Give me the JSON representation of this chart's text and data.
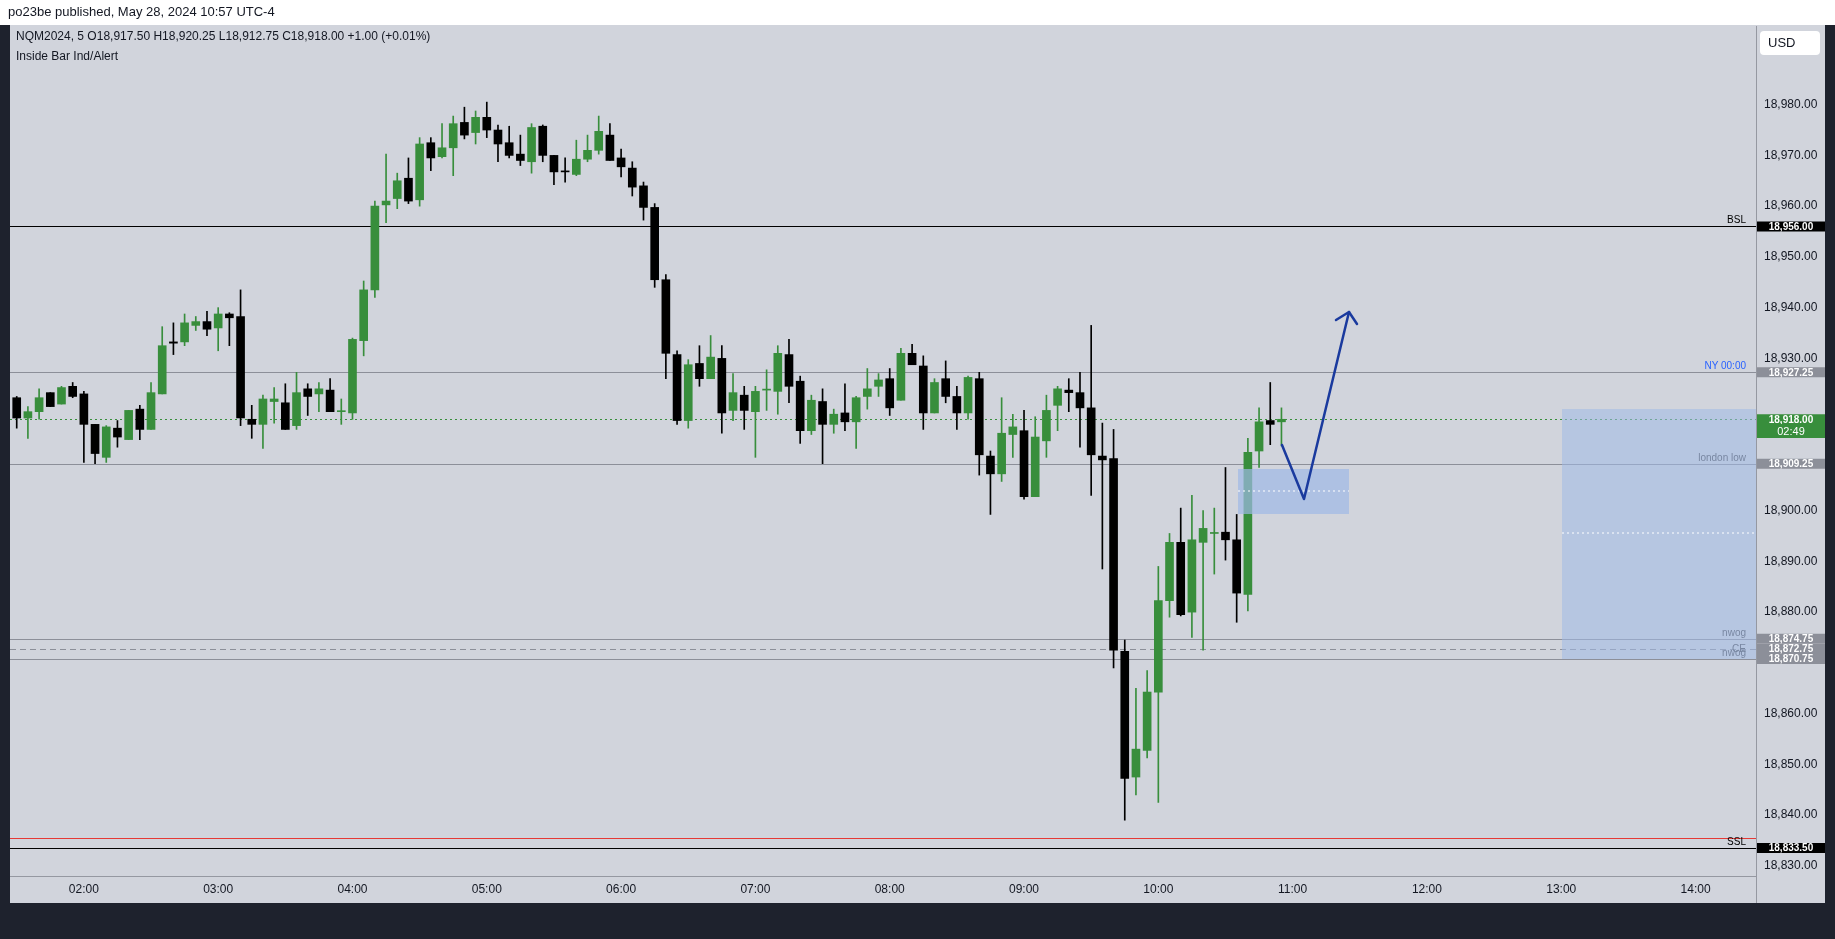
{
  "chart_data": {
    "type": "candlestick",
    "title": "NQM2024, 5 O18,917.50 H18,920.25 L18,912.75 C18,918.00 +1.00 (+0.01%)",
    "subtitle": "Inside Bar Ind/Alert",
    "annotations": [
      "po23be published, May 28, 2024 10:57 UTC-4",
      "USD",
      "02:49",
      {
        "text": "NY 00:00",
        "y": 18927.25
      }
    ],
    "x": [
      1.5,
      1.5833,
      1.6667,
      1.75,
      1.8333,
      1.9167,
      2,
      2.0833,
      2.1667,
      2.25,
      2.3333,
      2.4167,
      2.5,
      2.5833,
      2.6667,
      2.75,
      2.8333,
      2.9167,
      3,
      3.0833,
      3.1667,
      3.25,
      3.3333,
      3.4167,
      3.5,
      3.5833,
      3.6667,
      3.75,
      3.8333,
      3.9167,
      4,
      4.0833,
      4.1667,
      4.25,
      4.3333,
      4.4167,
      4.5,
      4.5833,
      4.6667,
      4.75,
      4.8333,
      4.9167,
      5,
      5.0833,
      5.1667,
      5.25,
      5.3333,
      5.4167,
      5.5,
      5.5833,
      5.6667,
      5.75,
      5.8333,
      5.9167,
      6,
      6.0833,
      6.1667,
      6.25,
      6.3333,
      6.4167,
      6.5,
      6.5833,
      6.6667,
      6.75,
      6.8333,
      6.9167,
      7,
      7.0833,
      7.1667,
      7.25,
      7.3333,
      7.4167,
      7.5,
      7.5833,
      7.6667,
      7.75,
      7.8333,
      7.9167,
      8,
      8.0833,
      8.1667,
      8.25,
      8.3333,
      8.4167,
      8.5,
      8.5833,
      8.6667,
      8.75,
      8.8333,
      8.9167,
      9,
      9.0833,
      9.1667,
      9.25,
      9.3333,
      9.4167,
      9.5,
      9.5833,
      9.6667,
      9.75,
      9.8333,
      9.9167,
      10,
      10.0833,
      10.1667,
      10.25,
      10.3333,
      10.4167,
      10.5,
      10.5833,
      10.6667,
      10.75,
      10.8333,
      10.9167
    ],
    "ohlc": [
      [
        18922.25,
        18922.5,
        18916.25,
        18918.25
      ],
      [
        18918.25,
        18920.5,
        18914.25,
        18919.5
      ],
      [
        18919.5,
        18924,
        18918,
        18922.25
      ],
      [
        18923.25,
        18923.25,
        18920.5,
        18920.5
      ],
      [
        18921,
        18924.5,
        18921,
        18924.25
      ],
      [
        18924.5,
        18925.25,
        18922.25,
        18922.5
      ],
      [
        18923,
        18923.5,
        18909.5,
        18917
      ],
      [
        18917,
        18917,
        18909.25,
        18911.25
      ],
      [
        18910.5,
        18916.75,
        18909.5,
        18916.5
      ],
      [
        18916.25,
        18917.75,
        18912.5,
        18914.5
      ],
      [
        18914,
        18919.75,
        18914,
        18919.75
      ],
      [
        18920,
        18920.75,
        18914,
        18916
      ],
      [
        18916,
        18925.25,
        18916,
        18923.25
      ],
      [
        18923,
        18936.25,
        18923,
        18932.5
      ],
      [
        18933.25,
        18937,
        18930.75,
        18933
      ],
      [
        18933.25,
        18938.75,
        18932.5,
        18937
      ],
      [
        18936.5,
        18938.25,
        18935.5,
        18937.25
      ],
      [
        18937.25,
        18939.25,
        18934.5,
        18935.75
      ],
      [
        18936,
        18940,
        18931.5,
        18938.75
      ],
      [
        18938.75,
        18939,
        18932.5,
        18938
      ],
      [
        18938.25,
        18943.5,
        18916.75,
        18918.25
      ],
      [
        18918,
        18920.75,
        18914.25,
        18917
      ],
      [
        18917,
        18922.75,
        18912.25,
        18922
      ],
      [
        18921.5,
        18924.25,
        18917.25,
        18922
      ],
      [
        18921.25,
        18925,
        18916,
        18916
      ],
      [
        18916.75,
        18927.25,
        18916,
        18923.25
      ],
      [
        18924,
        18925,
        18918.75,
        18922.5
      ],
      [
        18923,
        18925.25,
        18919.5,
        18924
      ],
      [
        18923.75,
        18926,
        18919.5,
        18919.5
      ],
      [
        18919.5,
        18922,
        18917,
        18919.5
      ],
      [
        18919.25,
        18934,
        18918,
        18933.75
      ],
      [
        18933.5,
        18945.25,
        18930.5,
        18943.5
      ],
      [
        18943.5,
        18961,
        18942,
        18960
      ],
      [
        18960.25,
        18970.25,
        18956.75,
        18961
      ],
      [
        18961.5,
        18966.5,
        18959.5,
        18965
      ],
      [
        18965.5,
        18969.5,
        18960.5,
        18961
      ],
      [
        18961.25,
        18973.5,
        18960,
        18972.25
      ],
      [
        18972.5,
        18973.5,
        18967,
        18969.5
      ],
      [
        18969.75,
        18976.25,
        18969.5,
        18971.5
      ],
      [
        18971.5,
        18977.75,
        18966,
        18976.25
      ],
      [
        18976.5,
        18979.5,
        18973.25,
        18974
      ],
      [
        18974.5,
        18978.75,
        18972.25,
        18977.5
      ],
      [
        18977.5,
        18980.5,
        18973.5,
        18975
      ],
      [
        18975,
        18976,
        18968.75,
        18972.25
      ],
      [
        18972.5,
        18975.75,
        18969.5,
        18970
      ],
      [
        18970.25,
        18974,
        18968,
        18969
      ],
      [
        18968.75,
        18976.25,
        18966.5,
        18975.5
      ],
      [
        18975.75,
        18976,
        18968.75,
        18970
      ],
      [
        18970,
        18970,
        18964.25,
        18966.75
      ],
      [
        18966.75,
        18969.5,
        18964.75,
        18966.75
      ],
      [
        18966.25,
        18973,
        18966,
        18969.25
      ],
      [
        18969.25,
        18974,
        18968.75,
        18971
      ],
      [
        18971,
        18977.75,
        18970.25,
        18974.75
      ],
      [
        18974,
        18976.25,
        18969,
        18969
      ],
      [
        18969.5,
        18971.25,
        18965.75,
        18967.75
      ],
      [
        18967.5,
        18968.75,
        18962,
        18963.75
      ],
      [
        18964,
        18964.75,
        18957.25,
        18959.75
      ],
      [
        18959.75,
        18960.5,
        18944,
        18945.5
      ],
      [
        18945.5,
        18946.5,
        18926,
        18931
      ],
      [
        18930.75,
        18931.5,
        18917,
        18917.75
      ],
      [
        18917.75,
        18929.75,
        18916.25,
        18928.75
      ],
      [
        18929,
        18932.5,
        18924.5,
        18926
      ],
      [
        18926,
        18934.5,
        18926,
        18930.25
      ],
      [
        18930,
        18932.5,
        18915.25,
        18919.25
      ],
      [
        18919.75,
        18927,
        18917.75,
        18923.25
      ],
      [
        18922.75,
        18924.5,
        18916,
        18919.75
      ],
      [
        18919.5,
        18924.5,
        18910.5,
        18923.5
      ],
      [
        18923.75,
        18927.75,
        18919.75,
        18923.75
      ],
      [
        18923.5,
        18932.5,
        18919,
        18931
      ],
      [
        18930.75,
        18933.75,
        18921.25,
        18924.5
      ],
      [
        18925.5,
        18926.5,
        18913.25,
        18915.75
      ],
      [
        18915.75,
        18922.75,
        18915,
        18921.75
      ],
      [
        18921.5,
        18924,
        18909.25,
        18917
      ],
      [
        18917,
        18920,
        18915.25,
        18919
      ],
      [
        18919.25,
        18925,
        18915.75,
        18917.5
      ],
      [
        18917.5,
        18922.5,
        18912.25,
        18922.25
      ],
      [
        18922.5,
        18928,
        18920,
        18924
      ],
      [
        18924.5,
        18927,
        18922.5,
        18925.75
      ],
      [
        18926,
        18928,
        18918.75,
        18920.25
      ],
      [
        18921.75,
        18932,
        18921.75,
        18931
      ],
      [
        18931,
        18932.75,
        18928.75,
        18928.75
      ],
      [
        18928.5,
        18930.5,
        18916,
        18919.25
      ],
      [
        18919.25,
        18926,
        18919.25,
        18925.25
      ],
      [
        18926,
        18929.5,
        18921.25,
        18922.5
      ],
      [
        18922.5,
        18924.5,
        18916,
        18919.25
      ],
      [
        18919.25,
        18926.5,
        18918,
        18926.25
      ],
      [
        18926,
        18927.25,
        18907,
        18911
      ],
      [
        18910.75,
        18911.75,
        18899.25,
        18907.25
      ],
      [
        18907.25,
        18922.25,
        18905.75,
        18915.25
      ],
      [
        18915,
        18919,
        18910.5,
        18916.5
      ],
      [
        18915.75,
        18919.75,
        18902.25,
        18902.75
      ],
      [
        18902.75,
        18918.5,
        18902.75,
        18914.5
      ],
      [
        18913.75,
        18922.75,
        18910.5,
        18919.75
      ],
      [
        18920.75,
        18924.5,
        18915.75,
        18924
      ],
      [
        18923.75,
        18926,
        18919.5,
        18923.25
      ],
      [
        18923.25,
        18927.25,
        18912.5,
        18920.25
      ],
      [
        18920.25,
        18936.5,
        18903,
        18911
      ],
      [
        18910.75,
        18917.25,
        18888.5,
        18910
      ],
      [
        18910.25,
        18916,
        18869,
        18872.5
      ],
      [
        18872.25,
        18874.5,
        18839,
        18847.25
      ],
      [
        18847.5,
        18865,
        18844,
        18853
      ],
      [
        18852.75,
        18868.5,
        18851.25,
        18864.25
      ],
      [
        18864.25,
        18889,
        18842.5,
        18882.25
      ],
      [
        18882.25,
        18895.5,
        18879,
        18893.75
      ],
      [
        18893.75,
        18900.5,
        18879.25,
        18879.5
      ],
      [
        18880,
        18903,
        18875,
        18894.25
      ],
      [
        18893.75,
        18900,
        18872.5,
        18896.5
      ],
      [
        18895.5,
        18900.5,
        18887.5,
        18895.5
      ],
      [
        18895.75,
        18908.5,
        18890.25,
        18894.25
      ],
      [
        18894.25,
        18899.25,
        18878,
        18883.75
      ],
      [
        18883.5,
        18914.25,
        18880.25,
        18911.5
      ],
      [
        18911.75,
        18920.25,
        18908.5,
        18917.5
      ],
      [
        18917.75,
        18925.25,
        18913,
        18917
      ],
      [
        18917.5,
        18920.25,
        18912.75,
        18918
      ]
    ],
    "colors": [
      "#000000",
      "#388e3c",
      "#388e3c",
      "#000000",
      "#388e3c",
      "#000000",
      "#000000",
      "#000000",
      "#388e3c",
      "#000000",
      "#388e3c",
      "#000000",
      "#388e3c",
      "#388e3c",
      "#000000",
      "#388e3c",
      "#388e3c",
      "#000000",
      "#388e3c",
      "#000000",
      "#000000",
      "#000000",
      "#388e3c",
      "#388e3c",
      "#000000",
      "#388e3c",
      "#000000",
      "#388e3c",
      "#000000",
      "#388e3c",
      "#388e3c",
      "#388e3c",
      "#388e3c",
      "#388e3c",
      "#388e3c",
      "#000000",
      "#388e3c",
      "#000000",
      "#388e3c",
      "#388e3c",
      "#000000",
      "#388e3c",
      "#000000",
      "#000000",
      "#000000",
      "#000000",
      "#388e3c",
      "#000000",
      "#000000",
      "#000000",
      "#388e3c",
      "#388e3c",
      "#388e3c",
      "#000000",
      "#000000",
      "#000000",
      "#000000",
      "#000000",
      "#000000",
      "#000000",
      "#388e3c",
      "#000000",
      "#388e3c",
      "#000000",
      "#388e3c",
      "#000000",
      "#388e3c",
      "#388e3c",
      "#388e3c",
      "#000000",
      "#000000",
      "#388e3c",
      "#000000",
      "#388e3c",
      "#000000",
      "#388e3c",
      "#388e3c",
      "#388e3c",
      "#000000",
      "#388e3c",
      "#000000",
      "#000000",
      "#388e3c",
      "#000000",
      "#000000",
      "#388e3c",
      "#000000",
      "#000000",
      "#388e3c",
      "#388e3c",
      "#000000",
      "#388e3c",
      "#388e3c",
      "#388e3c",
      "#000000",
      "#000000",
      "#000000",
      "#000000",
      "#000000",
      "#000000",
      "#388e3c",
      "#388e3c",
      "#388e3c",
      "#388e3c",
      "#000000",
      "#388e3c",
      "#388e3c",
      "#388e3c",
      "#000000",
      "#000000",
      "#388e3c",
      "#388e3c",
      "#000000",
      "#388e3c"
    ],
    "xlim": [
      1.45,
      14.45
    ],
    "xticks": [
      {
        "value": 2,
        "label": "02:00"
      },
      {
        "value": 3,
        "label": "03:00"
      },
      {
        "value": 4,
        "label": "04:00"
      },
      {
        "value": 5,
        "label": "05:00"
      },
      {
        "value": 6,
        "label": "06:00"
      },
      {
        "value": 7,
        "label": "07:00"
      },
      {
        "value": 8,
        "label": "08:00"
      },
      {
        "value": 9,
        "label": "09:00"
      },
      {
        "value": 10,
        "label": "10:00"
      },
      {
        "value": 11,
        "label": "11:00"
      },
      {
        "value": 12,
        "label": "12:00"
      },
      {
        "value": 13,
        "label": "13:00"
      },
      {
        "value": 14,
        "label": "14:00"
      }
    ],
    "ylim": [
      18828,
      18995.5
    ],
    "yticks": [
      {
        "value": 18830,
        "label": "18,830.00"
      },
      {
        "value": 18833.5,
        "label": "18,833.50"
      },
      {
        "value": 18840,
        "label": "18,840.00"
      },
      {
        "value": 18850,
        "label": "18,850.00"
      },
      {
        "value": 18860,
        "label": "18,860.00"
      },
      {
        "value": 18870.75,
        "label": "18,870.75"
      },
      {
        "value": 18872.75,
        "label": "18,872.75"
      },
      {
        "value": 18874.75,
        "label": "18,874.75"
      },
      {
        "value": 18880,
        "label": "18,880.00"
      },
      {
        "value": 18890,
        "label": "18,890.00"
      },
      {
        "value": 18900,
        "label": "18,900.00"
      },
      {
        "value": 18909.25,
        "label": "18,909.25"
      },
      {
        "value": 18918,
        "label": "18,918.00"
      },
      {
        "value": 18927.25,
        "label": "18,927.25"
      },
      {
        "value": 18930,
        "label": "18,930.00"
      },
      {
        "value": 18940,
        "label": "18,940.00"
      },
      {
        "value": 18950,
        "label": "18,950.00"
      },
      {
        "value": 18956,
        "label": "18,956.00"
      },
      {
        "value": 18960,
        "label": "18,960.00"
      },
      {
        "value": 18970,
        "label": "18,970.00"
      },
      {
        "value": 18980,
        "label": "18,980.00"
      }
    ],
    "ref_lines": [
      {
        "axis": "y",
        "value": 18956,
        "label": "BSL",
        "color": "#000000"
      },
      {
        "axis": "y",
        "value": 18927.25,
        "label": null,
        "color": "#8c8f99"
      },
      {
        "axis": "y",
        "value": 18918,
        "label": null,
        "color": "#388e3c",
        "line_style": "dotted"
      },
      {
        "axis": "y",
        "value": 18909.25,
        "label": "london low",
        "color": "#8c8f99"
      },
      {
        "axis": "y",
        "value": 18874.75,
        "label": "nwog",
        "color": "#8c8f99"
      },
      {
        "axis": "y",
        "value": 18872.75,
        "label": "CE",
        "color": "#8c8f99",
        "line_style": "dashed"
      },
      {
        "axis": "y",
        "value": 18870.75,
        "label": "nwog",
        "color": "#8c8f99"
      },
      {
        "axis": "y",
        "value": 18835.5,
        "label": null,
        "color": "#e53935"
      },
      {
        "axis": "y",
        "value": 18833.5,
        "label": "SSL",
        "color": "#000000"
      }
    ]
  }
}
